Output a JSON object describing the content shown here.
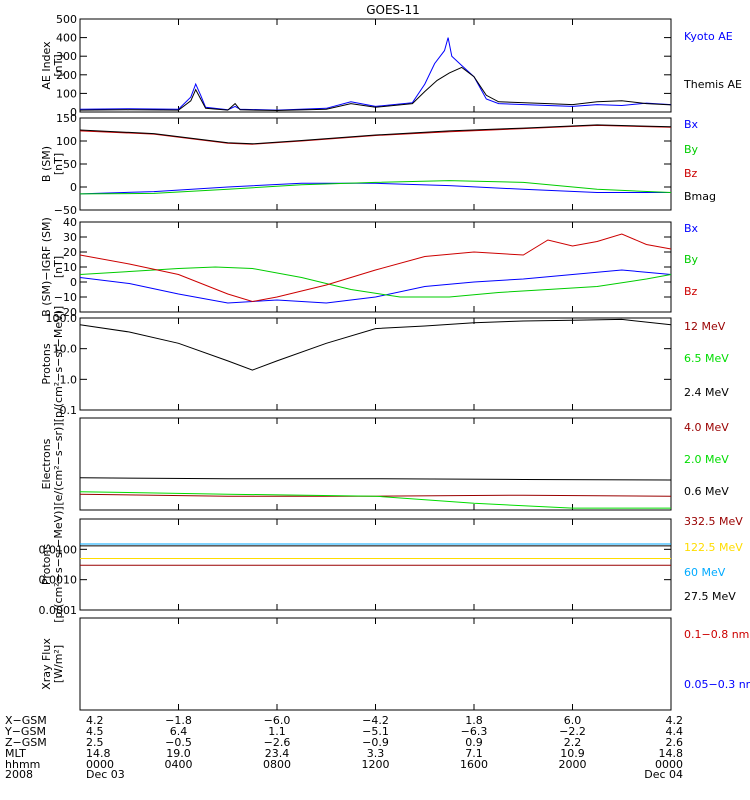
{
  "chart_data": [
    {
      "type": "line",
      "title": "GOES-11",
      "ylabel_lines": [
        "AE Index",
        "[nT]"
      ],
      "ylim": [
        0,
        500
      ],
      "y_ticks": [
        {
          "value": 0,
          "label": "0"
        },
        {
          "value": 100,
          "label": "100"
        },
        {
          "value": 200,
          "label": "200"
        },
        {
          "value": 300,
          "label": "300"
        },
        {
          "value": 400,
          "label": "400"
        },
        {
          "value": 500,
          "label": "500"
        }
      ],
      "series": [
        {
          "name": "Kyoto AE",
          "color": "#0000ff",
          "points": [
            [
              0,
              15
            ],
            [
              2,
              18
            ],
            [
              4,
              15
            ],
            [
              4.5,
              80
            ],
            [
              4.7,
              150
            ],
            [
              4.9,
              90
            ],
            [
              5.1,
              25
            ],
            [
              6,
              12
            ],
            [
              6.3,
              30
            ],
            [
              6.5,
              15
            ],
            [
              8,
              10
            ],
            [
              10,
              20
            ],
            [
              11,
              55
            ],
            [
              12,
              30
            ],
            [
              13.5,
              50
            ],
            [
              14,
              150
            ],
            [
              14.4,
              260
            ],
            [
              14.8,
              330
            ],
            [
              14.95,
              400
            ],
            [
              15.1,
              300
            ],
            [
              15.5,
              250
            ],
            [
              16,
              190
            ],
            [
              16.5,
              70
            ],
            [
              17,
              45
            ],
            [
              19,
              35
            ],
            [
              20,
              30
            ],
            [
              21,
              40
            ],
            [
              22,
              35
            ],
            [
              23,
              48
            ],
            [
              24,
              40
            ]
          ]
        },
        {
          "name": "Themis AE",
          "color": "#000000",
          "points": [
            [
              0,
              10
            ],
            [
              2,
              12
            ],
            [
              4,
              10
            ],
            [
              4.5,
              60
            ],
            [
              4.7,
              120
            ],
            [
              4.9,
              70
            ],
            [
              5.1,
              20
            ],
            [
              6,
              10
            ],
            [
              6.3,
              45
            ],
            [
              6.5,
              12
            ],
            [
              8,
              8
            ],
            [
              10,
              15
            ],
            [
              11,
              45
            ],
            [
              12,
              25
            ],
            [
              13.5,
              45
            ],
            [
              14,
              110
            ],
            [
              14.5,
              170
            ],
            [
              15,
              210
            ],
            [
              15.5,
              240
            ],
            [
              16,
              190
            ],
            [
              16.5,
              90
            ],
            [
              17,
              55
            ],
            [
              19,
              45
            ],
            [
              20,
              40
            ],
            [
              21,
              55
            ],
            [
              22,
              60
            ],
            [
              23,
              45
            ],
            [
              24,
              38
            ]
          ]
        }
      ]
    },
    {
      "type": "line",
      "ylabel_lines": [
        "B (SM)",
        "[nT]"
      ],
      "ylim": [
        -50,
        150
      ],
      "y_ticks": [
        {
          "value": -50,
          "label": "−50"
        },
        {
          "value": 0,
          "label": "0"
        },
        {
          "value": 50,
          "label": "50"
        },
        {
          "value": 100,
          "label": "100"
        },
        {
          "value": 150,
          "label": "150"
        }
      ],
      "series": [
        {
          "name": "Bx",
          "color": "#0000ff",
          "points": [
            [
              0,
              -15
            ],
            [
              3,
              -10
            ],
            [
              6,
              0
            ],
            [
              9,
              8
            ],
            [
              12,
              8
            ],
            [
              15,
              3
            ],
            [
              18,
              -5
            ],
            [
              21,
              -12
            ],
            [
              24,
              -12
            ]
          ]
        },
        {
          "name": "By",
          "color": "#00cc00",
          "points": [
            [
              0,
              -15
            ],
            [
              3,
              -14
            ],
            [
              6,
              -5
            ],
            [
              9,
              5
            ],
            [
              12,
              10
            ],
            [
              15,
              14
            ],
            [
              18,
              10
            ],
            [
              21,
              -5
            ],
            [
              24,
              -12
            ]
          ]
        },
        {
          "name": "Bz",
          "color": "#cc0000",
          "points": [
            [
              0,
              122
            ],
            [
              3,
              115
            ],
            [
              6,
              95
            ],
            [
              7,
              93
            ],
            [
              9,
              100
            ],
            [
              12,
              112
            ],
            [
              15,
              120
            ],
            [
              18,
              127
            ],
            [
              21,
              134
            ],
            [
              24,
              130
            ]
          ]
        },
        {
          "name": "Bmag",
          "color": "#000000",
          "points": [
            [
              0,
              124
            ],
            [
              3,
              116
            ],
            [
              6,
              96
            ],
            [
              7,
              94
            ],
            [
              9,
              101
            ],
            [
              12,
              113
            ],
            [
              15,
              122
            ],
            [
              18,
              128
            ],
            [
              21,
              135
            ],
            [
              24,
              131
            ]
          ]
        }
      ]
    },
    {
      "type": "line",
      "ylabel_lines": [
        "B (SM)−IGRF (SM)",
        "[nT]"
      ],
      "ylim": [
        -20,
        40
      ],
      "y_ticks": [
        {
          "value": -20,
          "label": "−20"
        },
        {
          "value": -10,
          "label": "−10"
        },
        {
          "value": 0,
          "label": "0"
        },
        {
          "value": 10,
          "label": "10"
        },
        {
          "value": 20,
          "label": "20"
        },
        {
          "value": 30,
          "label": "30"
        },
        {
          "value": 40,
          "label": "40"
        }
      ],
      "series": [
        {
          "name": "Bx",
          "color": "#0000ff",
          "points": [
            [
              0,
              3
            ],
            [
              2,
              -1
            ],
            [
              4,
              -8
            ],
            [
              6,
              -14
            ],
            [
              8,
              -12
            ],
            [
              10,
              -14
            ],
            [
              12,
              -10
            ],
            [
              14,
              -3
            ],
            [
              16,
              0
            ],
            [
              18,
              2
            ],
            [
              20,
              5
            ],
            [
              22,
              8
            ],
            [
              24,
              5
            ]
          ]
        },
        {
          "name": "By",
          "color": "#00cc00",
          "points": [
            [
              0,
              5
            ],
            [
              2,
              7
            ],
            [
              4,
              9
            ],
            [
              5.5,
              10
            ],
            [
              7,
              9
            ],
            [
              9,
              3
            ],
            [
              11,
              -5
            ],
            [
              13,
              -10
            ],
            [
              15,
              -10
            ],
            [
              17,
              -7
            ],
            [
              19,
              -5
            ],
            [
              21,
              -3
            ],
            [
              23,
              2
            ],
            [
              24,
              5
            ]
          ]
        },
        {
          "name": "Bz",
          "color": "#cc0000",
          "points": [
            [
              0,
              18
            ],
            [
              2,
              12
            ],
            [
              4,
              5
            ],
            [
              6,
              -8
            ],
            [
              7,
              -13
            ],
            [
              8,
              -10
            ],
            [
              10,
              -2
            ],
            [
              12,
              8
            ],
            [
              14,
              17
            ],
            [
              16,
              20
            ],
            [
              18,
              18
            ],
            [
              19,
              28
            ],
            [
              20,
              24
            ],
            [
              21,
              27
            ],
            [
              22,
              32
            ],
            [
              23,
              25
            ],
            [
              24,
              22
            ]
          ]
        }
      ]
    },
    {
      "type": "line",
      "ylabel_lines": [
        "Protons",
        "[p/(cm²−s−sr−MeV)]"
      ],
      "y_scale": "log",
      "ylim": [
        0.1,
        100
      ],
      "y_ticks": [
        {
          "value": 0.1,
          "label": "0.1"
        },
        {
          "value": 1,
          "label": "1.0"
        },
        {
          "value": 10,
          "label": "10.0"
        },
        {
          "value": 100,
          "label": "100.0"
        }
      ],
      "series": [
        {
          "name": "12 MeV",
          "color": "#990000",
          "points": []
        },
        {
          "name": "6.5 MeV",
          "color": "#00dd00",
          "points": []
        },
        {
          "name": "2.4 MeV",
          "color": "#000000",
          "points": [
            [
              0,
              60
            ],
            [
              2,
              35
            ],
            [
              4,
              15
            ],
            [
              6,
              4
            ],
            [
              7,
              2
            ],
            [
              8,
              4
            ],
            [
              10,
              15
            ],
            [
              12,
              45
            ],
            [
              14,
              55
            ],
            [
              16,
              70
            ],
            [
              18,
              80
            ],
            [
              20,
              85
            ],
            [
              22,
              90
            ],
            [
              24,
              60
            ]
          ]
        }
      ]
    },
    {
      "type": "line",
      "ylabel_lines": [
        "Electrons",
        "[e/(cm²−s−sr)]"
      ],
      "y_scale": "log",
      "ylim": [
        1,
        100
      ],
      "y_ticks": [],
      "series": [
        {
          "name": "4.0 MeV",
          "color": "#990000",
          "points": [
            [
              0,
              2.2
            ],
            [
              6,
              2.0
            ],
            [
              12,
              2.0
            ],
            [
              18,
              2.1
            ],
            [
              24,
              2.0
            ]
          ]
        },
        {
          "name": "2.0 MeV",
          "color": "#00dd00",
          "points": [
            [
              0,
              2.5
            ],
            [
              6,
              2.2
            ],
            [
              12,
              2.0
            ],
            [
              16,
              1.4
            ],
            [
              20,
              1.1
            ],
            [
              24,
              1.1
            ]
          ]
        },
        {
          "name": "0.6 MeV",
          "color": "#000000",
          "points": [
            [
              0,
              5.0
            ],
            [
              6,
              4.8
            ],
            [
              12,
              4.8
            ],
            [
              18,
              4.6
            ],
            [
              24,
              4.5
            ]
          ]
        }
      ]
    },
    {
      "type": "line",
      "ylabel_lines": [
        "Protons",
        "[p/(cm²−s−sr−MeV)]"
      ],
      "y_scale": "log",
      "ylim": [
        0.0001,
        0.1
      ],
      "y_ticks": [
        {
          "value": 0.0001,
          "label": "0.0001"
        },
        {
          "value": 0.001,
          "label": "0.0010"
        },
        {
          "value": 0.01,
          "label": "0.0100"
        }
      ],
      "series": [
        {
          "name": "332.5 MeV",
          "color": "#990000",
          "points": [
            [
              0,
              0.003
            ],
            [
              24,
              0.003
            ]
          ]
        },
        {
          "name": "122.5 MeV",
          "color": "#ffdd00",
          "points": [
            [
              0,
              0.005
            ],
            [
              24,
              0.005
            ]
          ]
        },
        {
          "name": "60 MeV",
          "color": "#00aaff",
          "points": [
            [
              0,
              0.015
            ],
            [
              24,
              0.015
            ]
          ]
        },
        {
          "name": "27.5 MeV",
          "color": "#000000",
          "points": [
            [
              0,
              0.013
            ],
            [
              24,
              0.013
            ]
          ]
        }
      ]
    },
    {
      "type": "line",
      "ylabel_lines": [
        "Xray Flux",
        "[W/m²]"
      ],
      "y_scale": "log",
      "ylim": [
        1e-08,
        1
      ],
      "y_ticks": [],
      "series": [
        {
          "name": "0.1−0.8 nm",
          "color": "#cc0000",
          "points": []
        },
        {
          "name": "0.05−0.3 nm",
          "color": "#0000ff",
          "points": []
        }
      ]
    }
  ],
  "x_axis": {
    "x_range": [
      0,
      24
    ],
    "tick_hours": [
      0,
      4,
      8,
      12,
      16,
      20,
      24
    ],
    "rows": [
      {
        "label": "X−GSM",
        "values": [
          "4.2",
          "−1.8",
          "−6.0",
          "−4.2",
          "1.8",
          "6.0",
          "4.2"
        ]
      },
      {
        "label": "Y−GSM",
        "values": [
          "4.5",
          "6.4",
          "1.1",
          "−5.1",
          "−6.3",
          "−2.2",
          "4.4"
        ]
      },
      {
        "label": "Z−GSM",
        "values": [
          "2.5",
          "−0.5",
          "−2.6",
          "−0.9",
          "0.9",
          "2.2",
          "2.6"
        ]
      },
      {
        "label": "MLT",
        "values": [
          "14.8",
          "19.0",
          "23.4",
          "3.3",
          "7.1",
          "10.9",
          "14.8"
        ]
      },
      {
        "label": "hhmm",
        "values": [
          "0000",
          "0400",
          "0800",
          "1200",
          "1600",
          "2000",
          "0000"
        ]
      },
      {
        "label": "2008",
        "values": [
          "Dec 03",
          "",
          "",
          "",
          "",
          "",
          "Dec 04"
        ]
      }
    ]
  }
}
